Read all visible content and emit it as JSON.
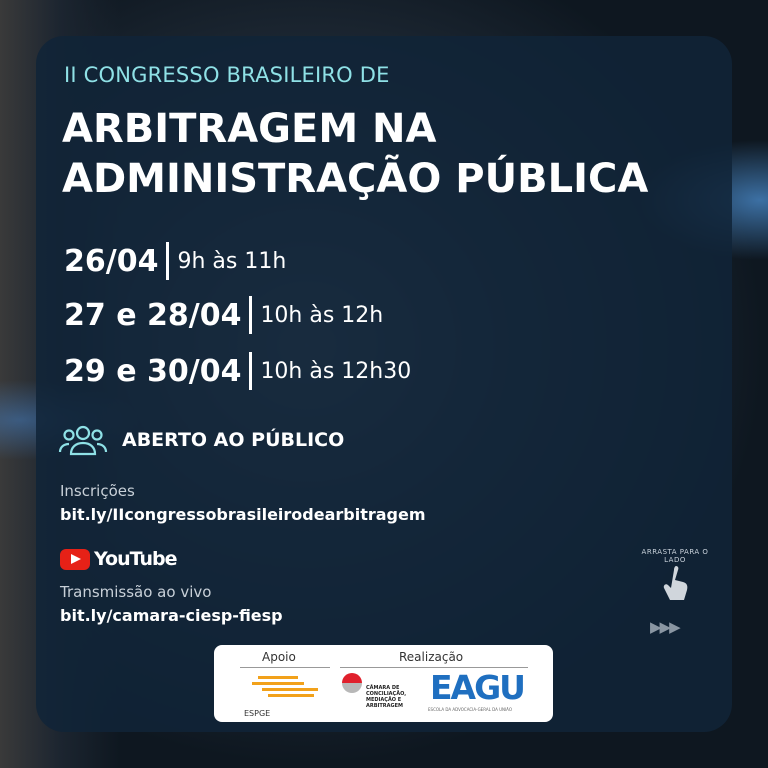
{
  "subtitle": "II CONGRESSO BRASILEIRO DE",
  "title": [
    "ARBITRAGEM NA",
    "ADMINISTRAÇÃO PÚBLICA"
  ],
  "schedule": [
    {
      "date": "26/04",
      "time": "9h às 11h"
    },
    {
      "date": "27 e 28/04",
      "time": "10h às 12h"
    },
    {
      "date": "29 e 30/04",
      "time": "10h às 12h30"
    }
  ],
  "open": {
    "icon": "people-icon",
    "label": "ABERTO AO PÚBLICO"
  },
  "registration": {
    "label": "Inscrições",
    "link": "bit.ly/IIcongressobrasileirodearbitragem"
  },
  "youtube": {
    "logo": "YouTube",
    "label": "Transmissão ao vivo",
    "link": "bit.ly/camara-ciesp-fiesp"
  },
  "swipe": {
    "text": "ARRASTA PARA O LADO",
    "icon": "hand-pointer-icon",
    "arrows": "▶▶▶"
  },
  "sponsors": {
    "support_label": "Apoio",
    "realization_label": "Realização",
    "espge": "ESPGE",
    "camara": "CÂMARA DE CONCILIAÇÃO, MEDIAÇÃO E ARBITRAGEM",
    "eagu": "EAGU",
    "eagu_sub": "ESCOLA DA ADVOCACIA-GERAL DA UNIÃO"
  },
  "colors": {
    "accent": "#8fe1e6",
    "panel": "#102438",
    "youtube": "#e62117",
    "eagu": "#1f6fc0",
    "espge": "#f2a11a"
  }
}
